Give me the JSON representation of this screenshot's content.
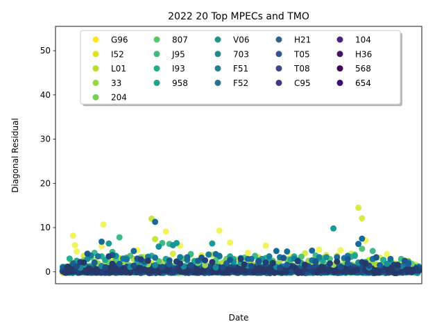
{
  "chart_data": {
    "type": "scatter",
    "title": "2022 20 Top MPECs and TMO",
    "xlabel": "Date",
    "ylabel": "Diagonal Residual",
    "ylim": [
      -2.7,
      55.5
    ],
    "yticks": [
      0,
      10,
      20,
      30,
      40,
      50
    ],
    "xticks": [],
    "grid": false,
    "legend": {
      "placement": "upper center",
      "columns": 5,
      "entries": [
        {
          "name": "G96",
          "color": "#fde725"
        },
        {
          "name": "I52",
          "color": "#dde318"
        },
        {
          "name": "L01",
          "color": "#bade28"
        },
        {
          "name": "33",
          "color": "#95d840"
        },
        {
          "name": "204",
          "color": "#75d054"
        },
        {
          "name": "807",
          "color": "#56c667"
        },
        {
          "name": "J95",
          "color": "#3dbc74"
        },
        {
          "name": "I93",
          "color": "#29af7f"
        },
        {
          "name": "958",
          "color": "#20a386"
        },
        {
          "name": "V06",
          "color": "#1f968b"
        },
        {
          "name": "703",
          "color": "#238a8d"
        },
        {
          "name": "F51",
          "color": "#287d8e"
        },
        {
          "name": "F52",
          "color": "#2d718e"
        },
        {
          "name": "H21",
          "color": "#33638d"
        },
        {
          "name": "T05",
          "color": "#39558c"
        },
        {
          "name": "T08",
          "color": "#404688"
        },
        {
          "name": "C95",
          "color": "#453781"
        },
        {
          "name": "104",
          "color": "#482576"
        },
        {
          "name": "H36",
          "color": "#481467"
        },
        {
          "name": "568",
          "color": "#440154"
        },
        {
          "name": "654",
          "color": "#3b0f70"
        }
      ]
    },
    "series_colors_rendered": [
      "#f1f55a",
      "#d9eb47",
      "#c7e43a",
      "#b3dc3a",
      "#9ad558",
      "#6dcd6a",
      "#53c57a",
      "#3eb98a",
      "#2aae92",
      "#1da596",
      "#199a96",
      "#18909a",
      "#17879b",
      "#167e9b",
      "#17749b",
      "#186a98",
      "#1a6093",
      "#1c568d",
      "#1f4c84",
      "#223f78",
      "#263868"
    ],
    "series": [
      {
        "name": "G96",
        "points": [
          [
            0.03,
            8.2
          ],
          [
            0.035,
            6.0
          ],
          [
            0.04,
            4.6
          ],
          [
            0.115,
            10.7
          ],
          [
            0.11,
            5.8
          ],
          [
            0.21,
            4.9
          ],
          [
            0.27,
            5.8
          ],
          [
            0.29,
            9.1
          ],
          [
            0.33,
            5.9
          ],
          [
            0.44,
            9.3
          ],
          [
            0.47,
            6.6
          ],
          [
            0.57,
            5.9
          ],
          [
            0.72,
            5.0
          ],
          [
            0.78,
            4.9
          ],
          [
            0.85,
            7.1
          ],
          [
            0.07,
            3.2
          ],
          [
            0.18,
            3.0
          ],
          [
            0.36,
            3.8
          ],
          [
            0.52,
            4.3
          ],
          [
            0.64,
            3.5
          ],
          [
            0.91,
            4.0
          ],
          [
            0.95,
            2.4
          ]
        ]
      },
      {
        "name": "I52",
        "points": [
          [
            0.02,
            2.9
          ],
          [
            0.06,
            3.6
          ],
          [
            0.14,
            2.7
          ],
          [
            0.23,
            3.4
          ],
          [
            0.31,
            4.1
          ],
          [
            0.39,
            3.7
          ],
          [
            0.49,
            2.8
          ],
          [
            0.55,
            3.3
          ],
          [
            0.68,
            4.2
          ],
          [
            0.74,
            3.8
          ],
          [
            0.81,
            4.1
          ],
          [
            0.83,
            14.5
          ],
          [
            0.84,
            12.1
          ],
          [
            0.89,
            3.2
          ],
          [
            0.97,
            2.5
          ]
        ]
      },
      {
        "name": "L01",
        "points": [
          [
            0.03,
            2.1
          ],
          [
            0.09,
            2.6
          ],
          [
            0.16,
            3.1
          ],
          [
            0.26,
            7.4
          ],
          [
            0.25,
            12.0
          ],
          [
            0.37,
            2.5
          ],
          [
            0.42,
            3.9
          ],
          [
            0.58,
            2.9
          ],
          [
            0.66,
            2.2
          ],
          [
            0.77,
            3.6
          ],
          [
            0.86,
            2.7
          ],
          [
            0.93,
            1.9
          ]
        ]
      },
      {
        "name": "33",
        "points": [
          [
            0.05,
            1.8
          ],
          [
            0.12,
            2.4
          ],
          [
            0.2,
            2.9
          ],
          [
            0.28,
            2.2
          ],
          [
            0.35,
            2.7
          ],
          [
            0.45,
            2.1
          ],
          [
            0.53,
            1.9
          ],
          [
            0.61,
            2.6
          ],
          [
            0.7,
            2.3
          ],
          [
            0.79,
            2.8
          ],
          [
            0.88,
            1.7
          ],
          [
            0.96,
            1.9
          ]
        ]
      },
      {
        "name": "204",
        "points": [
          [
            0.04,
            1.4
          ],
          [
            0.1,
            1.9
          ],
          [
            0.17,
            2.2
          ],
          [
            0.24,
            1.7
          ],
          [
            0.32,
            2.4
          ],
          [
            0.4,
            1.5
          ],
          [
            0.5,
            2.0
          ],
          [
            0.6,
            1.8
          ],
          [
            0.69,
            2.5
          ],
          [
            0.76,
            1.6
          ],
          [
            0.87,
            2.1
          ],
          [
            0.94,
            1.4
          ]
        ]
      },
      {
        "name": "807",
        "points": [
          [
            0.06,
            2.6
          ],
          [
            0.13,
            2.2
          ],
          [
            0.22,
            3.3
          ],
          [
            0.3,
            2.7
          ],
          [
            0.38,
            2.0
          ],
          [
            0.46,
            2.9
          ],
          [
            0.56,
            2.4
          ],
          [
            0.63,
            2.8
          ],
          [
            0.73,
            3.1
          ],
          [
            0.82,
            3.9
          ],
          [
            0.9,
            2.2
          ],
          [
            0.98,
            1.8
          ]
        ]
      },
      {
        "name": "J95",
        "points": [
          [
            0.08,
            3.3
          ],
          [
            0.15,
            2.8
          ],
          [
            0.19,
            3.6
          ],
          [
            0.27,
            2.4
          ],
          [
            0.34,
            3.0
          ],
          [
            0.43,
            2.6
          ],
          [
            0.51,
            3.2
          ],
          [
            0.59,
            2.5
          ],
          [
            0.67,
            3.4
          ],
          [
            0.75,
            2.9
          ],
          [
            0.84,
            5.2
          ],
          [
            0.92,
            2.3
          ]
        ]
      },
      {
        "name": "I93",
        "points": [
          [
            0.09,
            4.3
          ],
          [
            0.14,
            4.5
          ],
          [
            0.16,
            7.8
          ],
          [
            0.28,
            6.5
          ],
          [
            0.3,
            6.3
          ],
          [
            0.36,
            4.0
          ],
          [
            0.44,
            3.4
          ],
          [
            0.54,
            3.6
          ],
          [
            0.62,
            3.2
          ],
          [
            0.71,
            3.7
          ],
          [
            0.8,
            3.0
          ],
          [
            0.87,
            4.7
          ],
          [
            0.95,
            2.9
          ]
        ]
      },
      {
        "name": "958",
        "points": [
          [
            0.02,
            3.0
          ],
          [
            0.11,
            3.5
          ],
          [
            0.18,
            3.2
          ],
          [
            0.25,
            3.6
          ],
          [
            0.33,
            3.3
          ],
          [
            0.41,
            3.9
          ],
          [
            0.48,
            2.9
          ],
          [
            0.57,
            3.1
          ],
          [
            0.65,
            3.5
          ],
          [
            0.72,
            3.0
          ],
          [
            0.81,
            3.4
          ],
          [
            0.9,
            2.7
          ],
          [
            0.97,
            2.3
          ]
        ]
      },
      {
        "name": "V06",
        "points": [
          [
            0.04,
            2.5
          ],
          [
            0.12,
            2.7
          ],
          [
            0.21,
            2.3
          ],
          [
            0.29,
            2.9
          ],
          [
            0.37,
            2.4
          ],
          [
            0.47,
            3.5
          ],
          [
            0.55,
            2.6
          ],
          [
            0.64,
            2.8
          ],
          [
            0.73,
            2.5
          ],
          [
            0.82,
            3.6
          ],
          [
            0.92,
            2.4
          ]
        ]
      },
      {
        "name": "703",
        "points": [
          [
            0.06,
            1.6
          ],
          [
            0.13,
            6.4
          ],
          [
            0.23,
            1.9
          ],
          [
            0.32,
            6.5
          ],
          [
            0.42,
            6.4
          ],
          [
            0.5,
            2.1
          ],
          [
            0.58,
            2.5
          ],
          [
            0.67,
            2.0
          ],
          [
            0.76,
            9.8
          ],
          [
            0.85,
            2.2
          ],
          [
            0.94,
            1.7
          ]
        ]
      },
      {
        "name": "F51",
        "points": [
          [
            0.07,
            2.9
          ],
          [
            0.15,
            3.6
          ],
          [
            0.22,
            2.4
          ],
          [
            0.27,
            5.7
          ],
          [
            0.31,
            6.0
          ],
          [
            0.39,
            2.7
          ],
          [
            0.48,
            2.3
          ],
          [
            0.56,
            2.9
          ],
          [
            0.66,
            2.6
          ],
          [
            0.74,
            3.3
          ],
          [
            0.83,
            2.1
          ],
          [
            0.91,
            1.8
          ]
        ]
      },
      {
        "name": "F52",
        "points": [
          [
            0.05,
            0.9
          ],
          [
            0.11,
            1.3
          ],
          [
            0.19,
            1.1
          ],
          [
            0.26,
            1.5
          ],
          [
            0.34,
            1.2
          ],
          [
            0.43,
            1.0
          ],
          [
            0.52,
            1.4
          ],
          [
            0.6,
            1.1
          ],
          [
            0.69,
            1.3
          ],
          [
            0.78,
            1.2
          ],
          [
            0.86,
            1.0
          ],
          [
            0.95,
            1.3
          ]
        ]
      },
      {
        "name": "H21",
        "points": [
          [
            0.08,
            3.7
          ],
          [
            0.17,
            3.0
          ],
          [
            0.24,
            3.4
          ],
          [
            0.33,
            3.3
          ],
          [
            0.41,
            3.9
          ],
          [
            0.5,
            3.1
          ],
          [
            0.58,
            3.5
          ],
          [
            0.65,
            3.0
          ],
          [
            0.72,
            3.3
          ],
          [
            0.8,
            3.6
          ],
          [
            0.88,
            3.2
          ],
          [
            0.97,
            2.0
          ]
        ]
      },
      {
        "name": "T05",
        "points": [
          [
            0.1,
            3.5
          ],
          [
            0.18,
            2.8
          ],
          [
            0.26,
            3.2
          ],
          [
            0.35,
            2.7
          ],
          [
            0.44,
            3.6
          ],
          [
            0.53,
            2.9
          ],
          [
            0.61,
            3.3
          ],
          [
            0.7,
            2.6
          ],
          [
            0.79,
            3.1
          ],
          [
            0.87,
            2.9
          ],
          [
            0.96,
            1.9
          ]
        ]
      },
      {
        "name": "T08",
        "points": [
          [
            0.11,
            6.8
          ],
          [
            0.2,
            4.7
          ],
          [
            0.26,
            11.3
          ],
          [
            0.35,
            3.3
          ],
          [
            0.43,
            4.0
          ],
          [
            0.52,
            2.9
          ],
          [
            0.6,
            4.7
          ],
          [
            0.63,
            4.6
          ],
          [
            0.7,
            4.8
          ],
          [
            0.77,
            3.3
          ],
          [
            0.83,
            6.3
          ],
          [
            0.84,
            7.5
          ],
          [
            0.92,
            2.9
          ]
        ]
      },
      {
        "name": "C95",
        "points": [
          [
            0.03,
            1.9
          ],
          [
            0.09,
            2.1
          ],
          [
            0.16,
            1.8
          ],
          [
            0.23,
            2.3
          ],
          [
            0.3,
            1.7
          ],
          [
            0.38,
            2.5
          ],
          [
            0.46,
            1.9
          ],
          [
            0.55,
            2.2
          ],
          [
            0.63,
            1.6
          ],
          [
            0.71,
            2.4
          ],
          [
            0.8,
            1.9
          ],
          [
            0.89,
            1.5
          ],
          [
            0.97,
            1.8
          ]
        ]
      },
      {
        "name": "104",
        "points": [
          [
            0.07,
            4.1
          ],
          [
            0.14,
            3.8
          ],
          [
            0.21,
            3.0
          ],
          [
            0.3,
            2.5
          ],
          [
            0.39,
            3.2
          ],
          [
            0.47,
            2.7
          ],
          [
            0.55,
            2.4
          ],
          [
            0.62,
            3.1
          ],
          [
            0.71,
            2.2
          ],
          [
            0.8,
            2.9
          ],
          [
            0.88,
            3.3
          ],
          [
            0.96,
            2.5
          ]
        ]
      },
      {
        "name": "H36",
        "points": [
          [
            0.04,
            1.2
          ],
          [
            0.12,
            1.0
          ],
          [
            0.2,
            1.4
          ],
          [
            0.28,
            1.1
          ],
          [
            0.36,
            1.5
          ],
          [
            0.45,
            1.0
          ],
          [
            0.53,
            1.3
          ],
          [
            0.61,
            0.9
          ],
          [
            0.69,
            1.2
          ],
          [
            0.78,
            1.1
          ],
          [
            0.86,
            1.4
          ],
          [
            0.94,
            1.0
          ]
        ]
      },
      {
        "name": "568",
        "points": [
          [
            0.05,
            2.2
          ],
          [
            0.13,
            3.5
          ],
          [
            0.22,
            2.8
          ],
          [
            0.32,
            2.3
          ],
          [
            0.4,
            2.6
          ],
          [
            0.5,
            2.9
          ],
          [
            0.57,
            2.1
          ],
          [
            0.66,
            2.4
          ],
          [
            0.75,
            1.9
          ],
          [
            0.84,
            2.2
          ],
          [
            0.93,
            1.6
          ]
        ]
      },
      {
        "name": "654",
        "points": [
          [
            0.06,
            2.1
          ],
          [
            0.14,
            1.8
          ],
          [
            0.24,
            2.5
          ],
          [
            0.33,
            1.9
          ],
          [
            0.42,
            2.2
          ],
          [
            0.51,
            1.7
          ],
          [
            0.59,
            2.0
          ],
          [
            0.68,
            1.6
          ],
          [
            0.77,
            2.3
          ],
          [
            0.85,
            1.9
          ],
          [
            0.94,
            1.5
          ]
        ]
      }
    ]
  }
}
